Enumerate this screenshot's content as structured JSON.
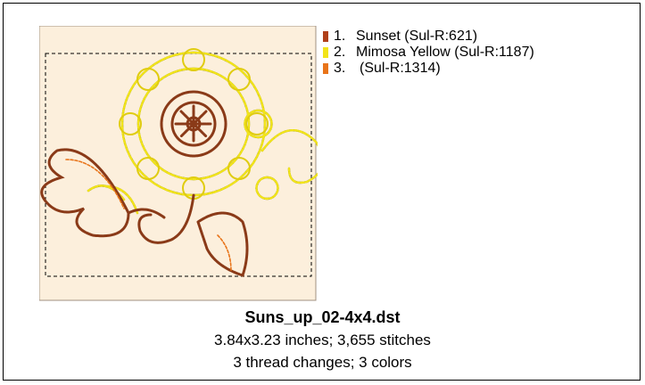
{
  "threads": [
    {
      "number": "1.",
      "name": "Sunset (Sul-R:621)",
      "color": "#b0401a"
    },
    {
      "number": "2.",
      "name": "Mimosa Yellow (Sul-R:1187)",
      "color": "#f2e41a"
    },
    {
      "number": "3.",
      "name": "(Sul-R:1314)",
      "color": "#e8741a"
    }
  ],
  "info": {
    "filename": "Suns_up_02-4x4.dst",
    "dimensions": "3.84x3.23 inches; 3,655 stitches",
    "changes": "3 thread changes; 3 colors"
  }
}
